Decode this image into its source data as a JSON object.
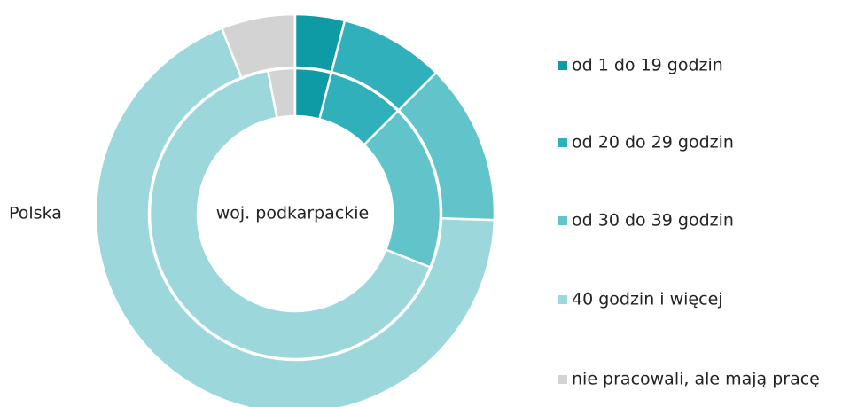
{
  "chart_data": {
    "type": "donut",
    "categories": [
      "od 1 do 19 godzin",
      "od 20 do 29 godzin",
      "od 30 do 39 godzin",
      "40 godzin i więcej",
      "nie pracowali, ale mają pracę"
    ],
    "colors": [
      "#0e9ba6",
      "#2fb0ba",
      "#62c4cb",
      "#9cd7db",
      "#d3d3d3"
    ],
    "series": [
      {
        "name": "Polska",
        "values": [
          4,
          8.5,
          13,
          68.5,
          6
        ]
      },
      {
        "name": "woj. podkarpackie",
        "values": [
          4,
          8.5,
          18.5,
          66,
          3
        ]
      }
    ]
  }
}
